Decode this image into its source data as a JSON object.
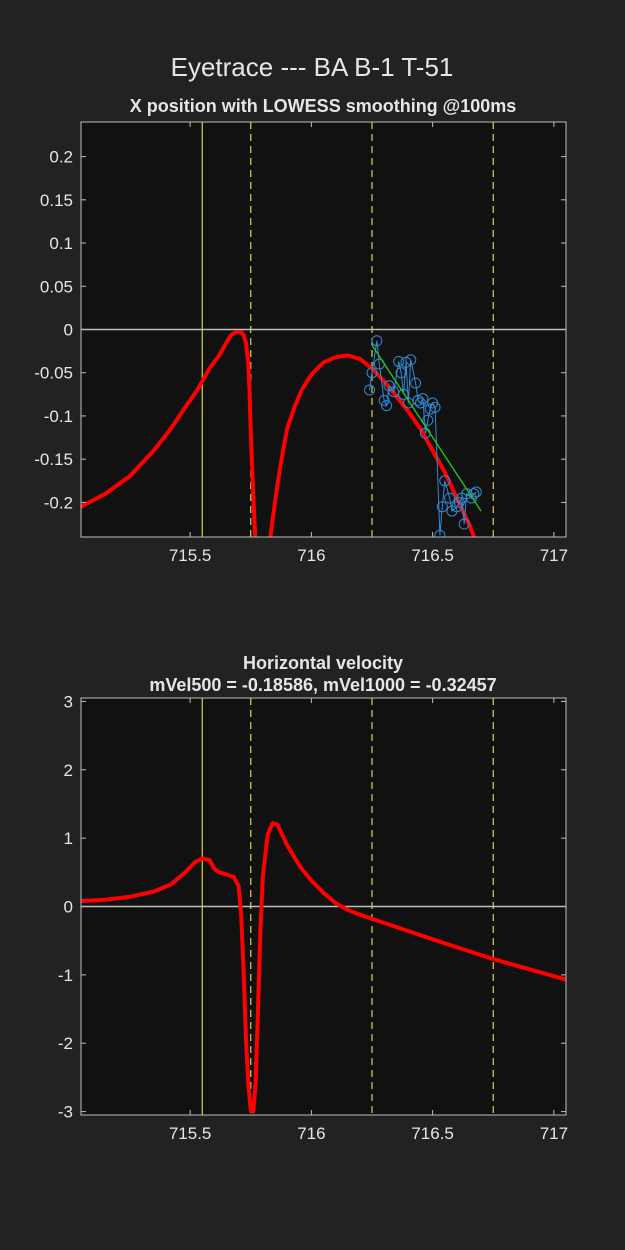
{
  "figure": {
    "title": "Eyetrace --- BA B-1 T-51",
    "colors": {
      "background": "#222222",
      "axes_background": "#111111",
      "trace": "#ff0000",
      "zero_line": "#bfbfbf",
      "event_line": "#d9d24a",
      "sample_marker": "#2e8bd6",
      "fit_line": "#22cc22"
    }
  },
  "chart_data": [
    {
      "type": "line",
      "title": "X position with LOWESS smoothing @100ms",
      "xlabel": "",
      "ylabel": "",
      "xlim": [
        715.05,
        717.05
      ],
      "ylim": [
        -0.24,
        0.24
      ],
      "xticks": [
        715.5,
        716,
        716.5,
        717
      ],
      "xtick_labels": [
        "715.5",
        "716",
        "716.5",
        "717"
      ],
      "yticks": [
        0.2,
        0.15,
        0.1,
        0.05,
        0,
        -0.05,
        -0.1,
        -0.15,
        -0.2
      ],
      "ytick_labels": [
        "0.2",
        "0.15",
        "0.1",
        "0.05",
        "0",
        "-0.05",
        "-0.1",
        "-0.15",
        "-0.2"
      ],
      "grid": false,
      "zero_line": true,
      "event_lines": [
        {
          "x": 715.55,
          "style": "solid"
        },
        {
          "x": 715.75,
          "style": "dashed"
        },
        {
          "x": 716.25,
          "style": "dashed"
        },
        {
          "x": 716.75,
          "style": "dashed"
        }
      ],
      "series": [
        {
          "kind": "smoothed",
          "x": [
            715.05,
            715.15,
            715.25,
            715.35,
            715.42,
            715.48,
            715.53,
            715.58,
            715.62,
            715.65,
            715.67,
            715.69,
            715.71,
            715.72,
            715.73,
            715.74,
            715.745,
            715.75,
            715.76,
            715.77,
            715.78,
            715.8,
            715.82,
            715.84,
            715.86,
            715.88,
            715.9,
            715.93,
            715.96,
            716.0,
            716.05,
            716.1,
            716.15,
            716.2,
            716.25,
            716.3,
            716.35,
            716.4,
            716.45,
            716.5,
            716.55,
            716.6,
            716.65,
            716.7
          ],
          "y": [
            -0.205,
            -0.19,
            -0.17,
            -0.14,
            -0.115,
            -0.09,
            -0.07,
            -0.045,
            -0.03,
            -0.015,
            -0.006,
            -0.003,
            -0.003,
            -0.006,
            -0.015,
            -0.04,
            -0.07,
            -0.12,
            -0.19,
            -0.25,
            -0.29,
            -0.3,
            -0.265,
            -0.22,
            -0.18,
            -0.145,
            -0.115,
            -0.09,
            -0.07,
            -0.052,
            -0.038,
            -0.032,
            -0.03,
            -0.034,
            -0.045,
            -0.06,
            -0.077,
            -0.095,
            -0.115,
            -0.14,
            -0.165,
            -0.195,
            -0.225,
            -0.26
          ]
        },
        {
          "kind": "samples",
          "x": [
            716.24,
            716.25,
            716.27,
            716.28,
            716.3,
            716.31,
            716.32,
            716.34,
            716.36,
            716.37,
            716.38,
            716.39,
            716.4,
            716.41,
            716.43,
            716.44,
            716.45,
            716.46,
            716.47,
            716.48,
            716.49,
            716.5,
            716.51,
            716.53,
            716.54,
            716.55,
            716.57,
            716.58,
            716.6,
            716.61,
            716.62,
            716.63,
            716.64,
            716.66,
            716.67,
            716.68
          ],
          "y": [
            -0.07,
            -0.05,
            -0.013,
            -0.04,
            -0.082,
            -0.088,
            -0.065,
            -0.072,
            -0.037,
            -0.05,
            -0.075,
            -0.038,
            -0.085,
            -0.035,
            -0.062,
            -0.082,
            -0.085,
            -0.08,
            -0.12,
            -0.105,
            -0.092,
            -0.085,
            -0.09,
            -0.238,
            -0.205,
            -0.175,
            -0.195,
            -0.21,
            -0.205,
            -0.2,
            -0.195,
            -0.225,
            -0.19,
            -0.195,
            -0.19,
            -0.188
          ]
        },
        {
          "kind": "fit",
          "x": [
            716.25,
            716.7
          ],
          "y": [
            -0.018,
            -0.21
          ]
        }
      ]
    },
    {
      "type": "line",
      "title": "Horizontal velocity",
      "subtitle": "mVel500 = -0.18586, mVel1000 = -0.32457",
      "xlabel": "",
      "ylabel": "",
      "xlim": [
        715.05,
        717.05
      ],
      "ylim": [
        -3.05,
        3.05
      ],
      "xticks": [
        715.5,
        716,
        716.5,
        717
      ],
      "xtick_labels": [
        "715.5",
        "716",
        "716.5",
        "717"
      ],
      "yticks": [
        3,
        2,
        1,
        0,
        -1,
        -2,
        -3
      ],
      "ytick_labels": [
        "3",
        "2",
        "1",
        "0",
        "-1",
        "-2",
        "-3"
      ],
      "grid": false,
      "zero_line": true,
      "event_lines": [
        {
          "x": 715.55,
          "style": "solid"
        },
        {
          "x": 715.75,
          "style": "dashed"
        },
        {
          "x": 716.25,
          "style": "dashed"
        },
        {
          "x": 716.75,
          "style": "dashed"
        }
      ],
      "series": [
        {
          "kind": "velocity",
          "x": [
            715.05,
            715.15,
            715.25,
            715.35,
            715.42,
            715.48,
            715.52,
            715.55,
            715.58,
            715.6,
            715.62,
            715.65,
            715.68,
            715.7,
            715.71,
            715.72,
            715.73,
            715.74,
            715.75,
            715.76,
            715.77,
            715.78,
            715.79,
            715.8,
            715.82,
            715.84,
            715.86,
            715.88,
            715.9,
            715.93,
            715.96,
            716.0,
            716.05,
            716.1,
            716.15,
            716.2,
            716.25,
            716.35,
            716.5,
            716.75,
            717.05
          ],
          "y": [
            0.08,
            0.1,
            0.14,
            0.22,
            0.32,
            0.5,
            0.65,
            0.7,
            0.68,
            0.55,
            0.5,
            0.47,
            0.43,
            0.3,
            -0.1,
            -0.9,
            -1.9,
            -2.6,
            -2.98,
            -3.0,
            -2.6,
            -1.5,
            -0.3,
            0.45,
            1.05,
            1.22,
            1.2,
            1.05,
            0.9,
            0.72,
            0.55,
            0.38,
            0.2,
            0.05,
            -0.05,
            -0.12,
            -0.18,
            -0.3,
            -0.48,
            -0.77,
            -1.07
          ]
        }
      ]
    }
  ]
}
